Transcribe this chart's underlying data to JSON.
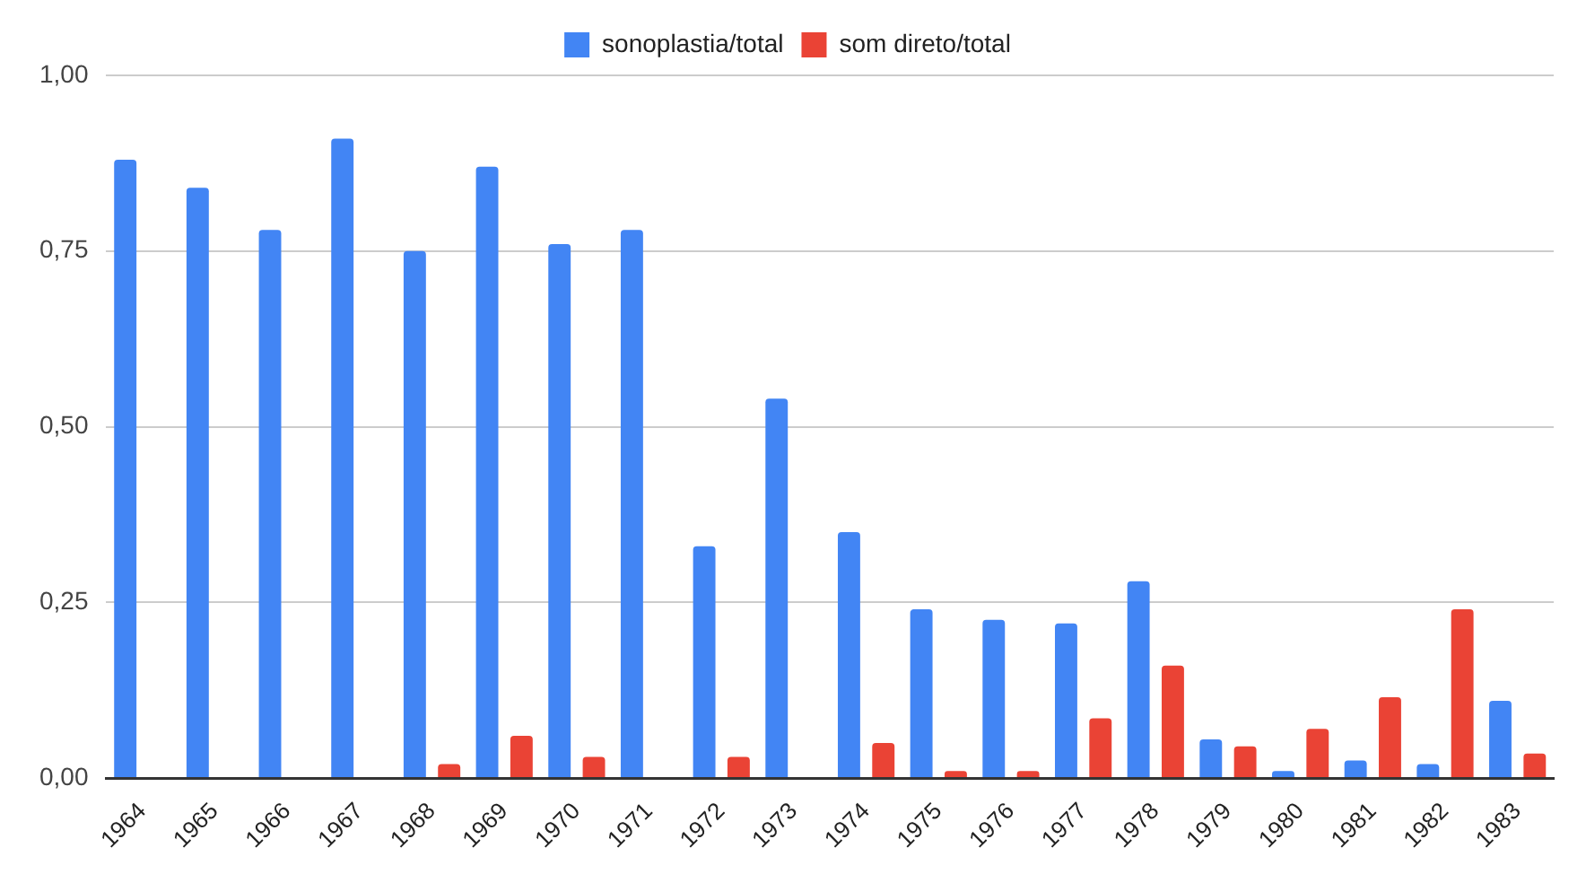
{
  "chart_data": {
    "type": "bar",
    "categories": [
      "1964",
      "1965",
      "1966",
      "1967",
      "1968",
      "1969",
      "1970",
      "1971",
      "1972",
      "1973",
      "1974",
      "1975",
      "1976",
      "1977",
      "1978",
      "1979",
      "1980",
      "1981",
      "1982",
      "1983"
    ],
    "series": [
      {
        "name": "sonoplastia/total",
        "color": "#4285f4",
        "values": [
          0.88,
          0.84,
          0.78,
          0.91,
          0.75,
          0.87,
          0.76,
          0.78,
          0.33,
          0.54,
          0.35,
          0.24,
          0.225,
          0.22,
          0.28,
          0.055,
          0.01,
          0.025,
          0.02,
          0.11
        ]
      },
      {
        "name": "som direto/total",
        "color": "#ea4335",
        "values": [
          null,
          null,
          null,
          null,
          0.02,
          0.06,
          0.03,
          null,
          0.03,
          null,
          0.05,
          0.01,
          0.01,
          0.085,
          0.16,
          0.045,
          0.07,
          0.115,
          0.24,
          0.035
        ]
      }
    ],
    "ylim": [
      0,
      1
    ],
    "yticks": [
      {
        "value": 0,
        "label": "0,00"
      },
      {
        "value": 0.25,
        "label": "0,25"
      },
      {
        "value": 0.5,
        "label": "0,50"
      },
      {
        "value": 0.75,
        "label": "0,75"
      },
      {
        "value": 1,
        "label": "1,00"
      }
    ],
    "grid": "y",
    "legend": "top"
  }
}
